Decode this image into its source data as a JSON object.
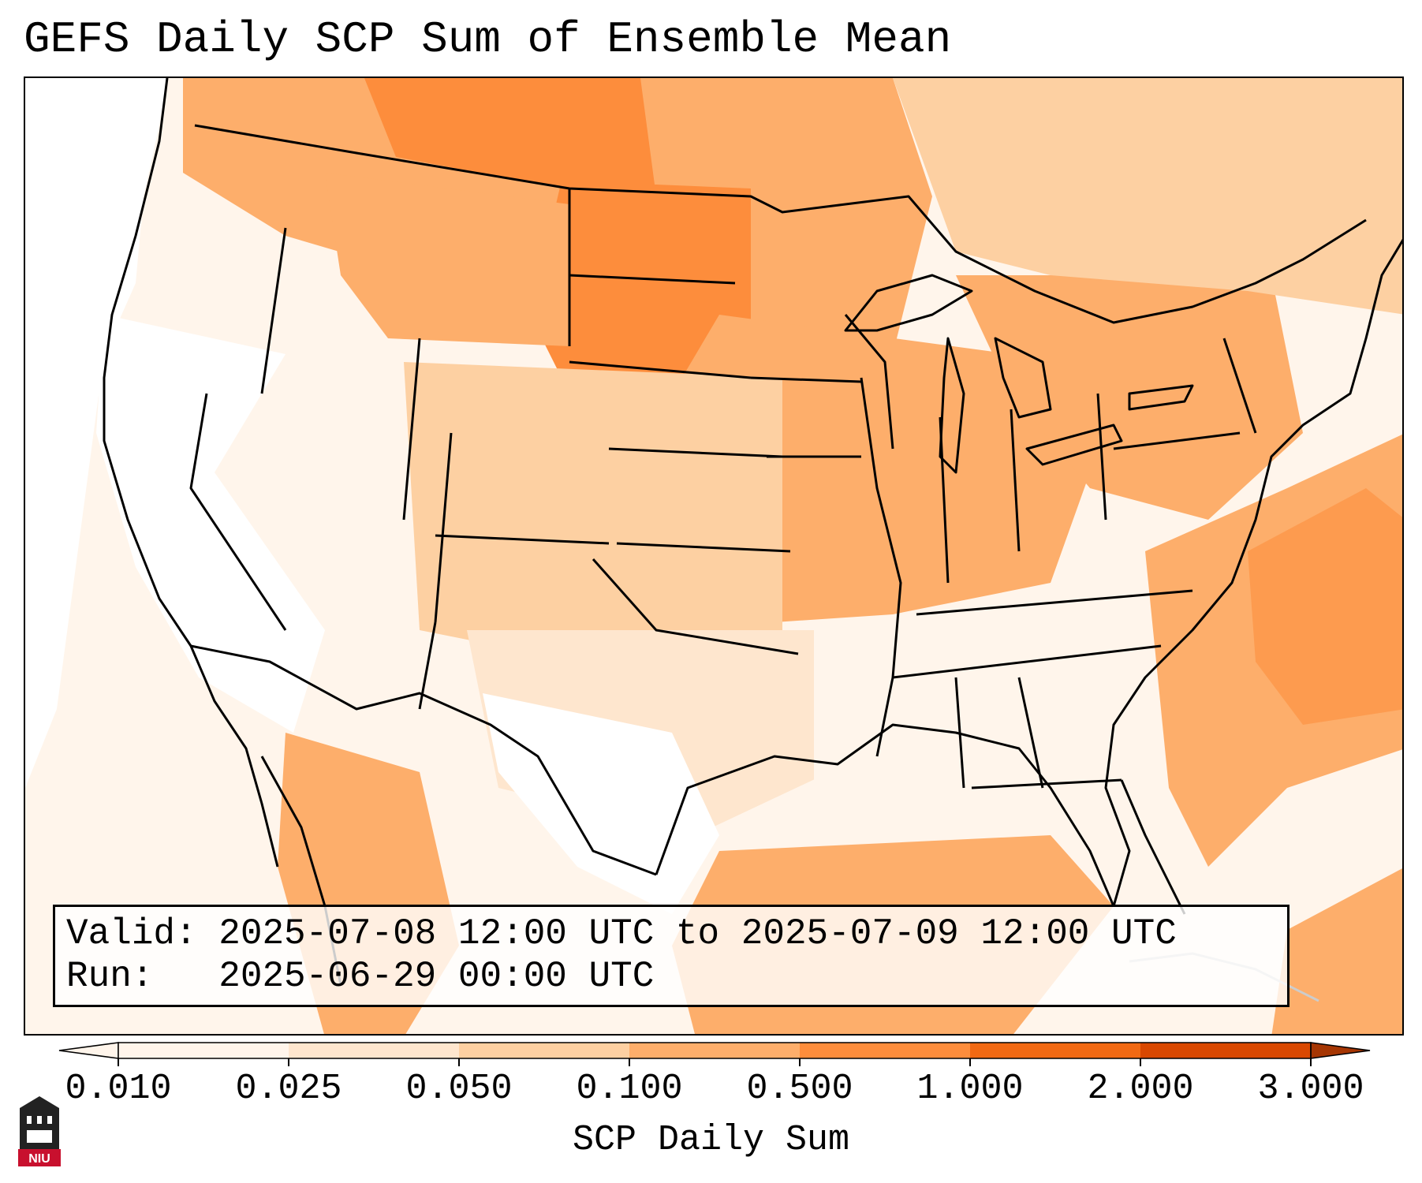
{
  "title": "GEFS Daily SCP Sum of Ensemble Mean",
  "info": {
    "valid_line": "Valid: 2025-07-08 12:00 UTC to 2025-07-09 12:00 UTC",
    "run_line": "Run:   2025-06-29 00:00 UTC"
  },
  "colorbar": {
    "label": "SCP Daily Sum",
    "ticks": [
      "0.010",
      "0.025",
      "0.050",
      "0.100",
      "0.500",
      "1.000",
      "2.000",
      "3.000"
    ],
    "colors": [
      "#fff5eb",
      "#fee6ce",
      "#fdd0a2",
      "#fdae6b",
      "#fd8d3c",
      "#f16913",
      "#d94801"
    ],
    "extend": "both"
  },
  "map": {
    "region": "Contiguous United States",
    "shading_colors": {
      "lowest": "#fff5eb",
      "low": "#fee6ce",
      "mid": "#fdd0a2",
      "mid_high": "#fdae6b",
      "high": "#fd8d3c",
      "higher": "#f16913"
    },
    "borders": "state and national boundaries"
  },
  "logo": {
    "text": "NIU",
    "icon": "university-tower-icon"
  }
}
